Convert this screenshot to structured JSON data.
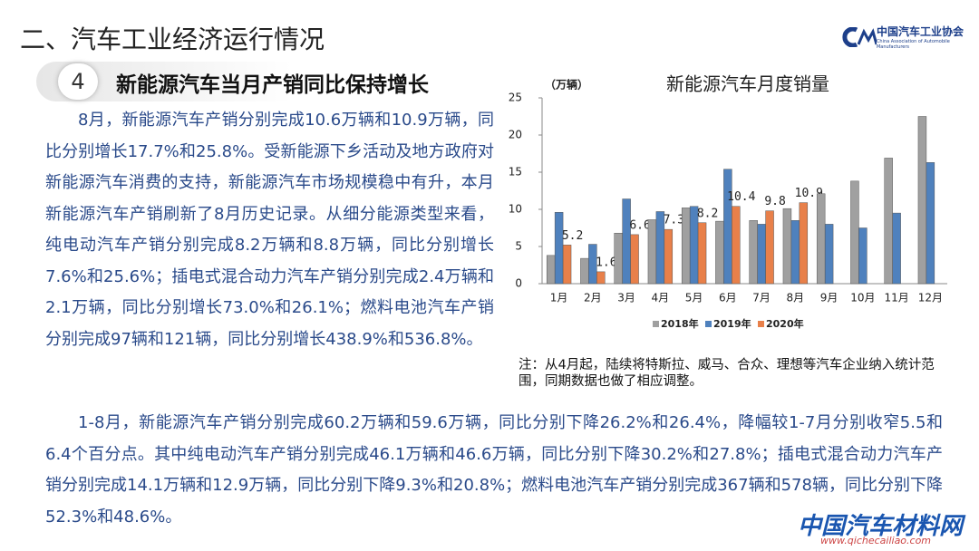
{
  "header": {
    "title": "二、汽车工业经济运行情况",
    "logo_cn": "中国汽车工业协会",
    "logo_en": "China Association of Automobile Manufacturers"
  },
  "section": {
    "number": "4",
    "title": "新能源汽车当月产销同比保持增长"
  },
  "paragraphs": [
    "8月，新能源汽车产销分别完成10.6万辆和10.9万辆，同比分别增长17.7%和25.8%。受新能源下乡活动及地方政府对新能源汽车消费的支持，新能源汽车市场规模稳中有升，本月新能源汽车产销刷新了8月历史记录。从细分能源类型来看，纯电动汽车产销分别完成8.2万辆和8.8万辆，同比分别增长7.6%和25.6%；插电式混合动力汽车产销分别完成2.4万辆和2.1万辆，同比分别增长73.0%和26.1%；燃料电池汽车产销分别完成97辆和121辆，同比分别增长438.9%和536.8%。",
    "1-8月，新能源汽车产销分别完成60.2万辆和59.6万辆，同比分别下降26.2%和26.4%，降幅较1-7月分别收窄5.5和6.4个百分点。其中纯电动汽车产销分别完成46.1万辆和46.6万辆，同比分别下降30.2%和27.8%；插电式混合动力汽车产销分别完成14.1万辆和12.9万辆，同比分别下降9.3%和20.8%；燃料电池汽车产销分别完成367辆和578辆，同比分别下降52.3%和48.6%。"
  ],
  "note": "注：从4月起，陆续将特斯拉、威马、合众、理想等汽车企业纳入统计范围，同期数据也做了相应调整。",
  "watermark": {
    "name": "中国汽车材料网",
    "url": "www.qichecailiao.com"
  },
  "chart_data": {
    "type": "bar",
    "title": "新能源汽车月度销量",
    "y_label": "（万辆）",
    "categories": [
      "1月",
      "2月",
      "3月",
      "4月",
      "5月",
      "6月",
      "7月",
      "8月",
      "9月",
      "10月",
      "11月",
      "12月"
    ],
    "series": [
      {
        "name": "2018年",
        "color": "#a0a0a0",
        "values": [
          3.8,
          3.4,
          6.8,
          8.6,
          10.2,
          8.4,
          8.5,
          10.1,
          12.1,
          13.8,
          16.9,
          22.5
        ]
      },
      {
        "name": "2019年",
        "color": "#4f81bd",
        "values": [
          9.6,
          5.3,
          11.4,
          9.7,
          10.4,
          15.4,
          8.0,
          8.5,
          8.0,
          7.5,
          9.5,
          16.3
        ]
      },
      {
        "name": "2020年",
        "color": "#e8804a",
        "values": [
          5.2,
          1.6,
          6.6,
          7.3,
          8.2,
          10.4,
          9.8,
          10.9,
          null,
          null,
          null,
          null
        ]
      }
    ],
    "ylim": [
      0,
      25
    ],
    "yticks": [
      0,
      5,
      10,
      15,
      20,
      25
    ],
    "grid": false,
    "legend": "bottom"
  }
}
